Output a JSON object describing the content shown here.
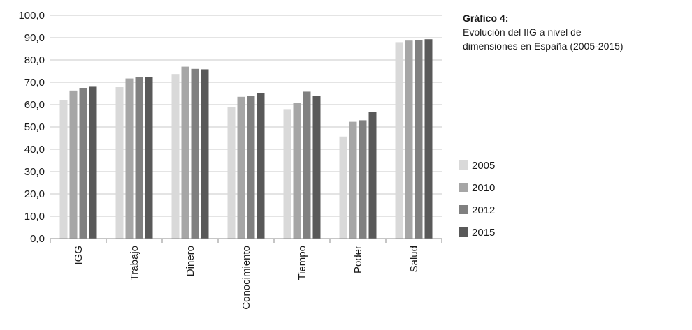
{
  "caption": {
    "title": "Gráfico 4:",
    "subtitle_line1": "Evolución del IIG a nivel de",
    "subtitle_line2": "dimensiones en España (2005-2015)"
  },
  "chart_data": {
    "type": "bar",
    "title": "Gráfico 4:",
    "subtitle": "Evolución del IIG a nivel de dimensiones en España (2005-2015)",
    "categories": [
      "IGG",
      "Trabajo",
      "Dinero",
      "Conocimiento",
      "Tiempo",
      "Poder",
      "Salud"
    ],
    "series": [
      {
        "name": "2005",
        "color": "#d9d9d9",
        "values": [
          62.0,
          68.0,
          73.7,
          59.0,
          58.0,
          45.7,
          88.0
        ]
      },
      {
        "name": "2010",
        "color": "#a6a6a6",
        "values": [
          66.3,
          71.7,
          77.0,
          63.5,
          60.7,
          52.3,
          88.7
        ]
      },
      {
        "name": "2012",
        "color": "#808080",
        "values": [
          67.5,
          72.2,
          76.0,
          64.0,
          65.8,
          53.0,
          89.0
        ]
      },
      {
        "name": "2015",
        "color": "#595959",
        "values": [
          68.3,
          72.5,
          75.8,
          65.2,
          63.8,
          56.7,
          89.3
        ]
      }
    ],
    "yticks": [
      "0,0",
      "10,0",
      "20,0",
      "30,0",
      "40,0",
      "50,0",
      "60,0",
      "70,0",
      "80,0",
      "90,0",
      "100,0"
    ],
    "ylim": [
      0,
      100
    ],
    "grid": true,
    "legend_position": "right"
  }
}
